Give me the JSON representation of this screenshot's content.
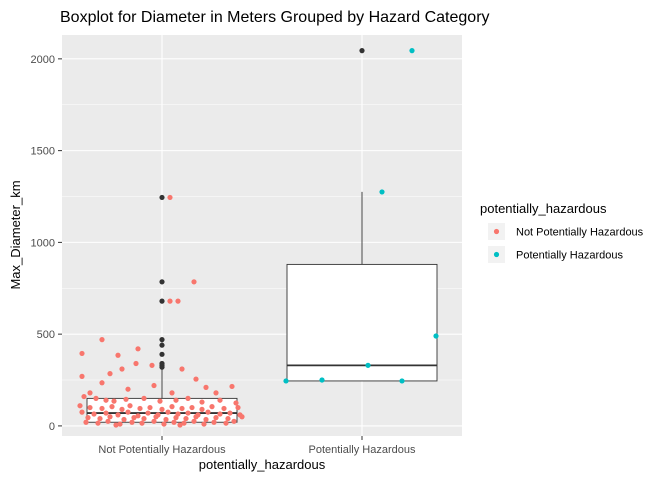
{
  "chart_data": {
    "type": "boxplot",
    "title": "Boxplot for Diameter in Meters Grouped by Hazard Category",
    "xlabel": "potentially_hazardous",
    "ylabel": "Max_Diameter_km",
    "ylim": [
      -55,
      2130
    ],
    "yticks": [
      0,
      500,
      1000,
      1500,
      2000
    ],
    "grid": true,
    "legend_position": "right",
    "legend": {
      "title": "potentially_hazardous",
      "entries": [
        {
          "name": "Not Potentially Hazardous",
          "color": "#F8766D"
        },
        {
          "name": "Potentially Hazardous",
          "color": "#00BFC4"
        }
      ]
    },
    "categories": [
      "Not Potentially Hazardous",
      "Potentially Hazardous"
    ],
    "boxes": [
      {
        "category": "Not Potentially Hazardous",
        "q1": 20,
        "median": 70,
        "q3": 150,
        "whisker_low": 5,
        "whisker_high": 330,
        "outliers": [
          1245,
          785,
          680,
          470,
          440,
          390,
          340,
          330,
          320
        ]
      },
      {
        "category": "Potentially Hazardous",
        "q1": 245,
        "median": 330,
        "q3": 880,
        "whisker_low": 245,
        "whisker_high": 1275,
        "outliers": [
          2045
        ]
      }
    ],
    "points": [
      {
        "category": "Potentially Hazardous",
        "jitter": -0.38,
        "value": 245
      },
      {
        "category": "Potentially Hazardous",
        "jitter": -0.2,
        "value": 250
      },
      {
        "category": "Potentially Hazardous",
        "jitter": 0.03,
        "value": 330
      },
      {
        "category": "Potentially Hazardous",
        "jitter": 0.1,
        "value": 1275
      },
      {
        "category": "Potentially Hazardous",
        "jitter": 0.2,
        "value": 245
      },
      {
        "category": "Potentially Hazardous",
        "jitter": 0.25,
        "value": 2045
      },
      {
        "category": "Potentially Hazardous",
        "jitter": 0.37,
        "value": 490
      },
      {
        "category": "Not Potentially Hazardous",
        "jitter": 0.04,
        "value": 1245
      },
      {
        "category": "Not Potentially Hazardous",
        "jitter": 0.16,
        "value": 785
      },
      {
        "category": "Not Potentially Hazardous",
        "jitter": 0.04,
        "value": 680
      },
      {
        "category": "Not Potentially Hazardous",
        "jitter": 0.08,
        "value": 680
      },
      {
        "category": "Not Potentially Hazardous",
        "jitter": -0.4,
        "value": 395
      },
      {
        "category": "Not Potentially Hazardous",
        "jitter": -0.3,
        "value": 470
      },
      {
        "category": "Not Potentially Hazardous",
        "jitter": -0.12,
        "value": 420
      },
      {
        "category": "Not Potentially Hazardous",
        "jitter": -0.22,
        "value": 385
      },
      {
        "category": "Not Potentially Hazardous",
        "jitter": -0.13,
        "value": 340
      },
      {
        "category": "Not Potentially Hazardous",
        "jitter": -0.05,
        "value": 330
      },
      {
        "category": "Not Potentially Hazardous",
        "jitter": -0.2,
        "value": 310
      },
      {
        "category": "Not Potentially Hazardous",
        "jitter": -0.26,
        "value": 285
      },
      {
        "category": "Not Potentially Hazardous",
        "jitter": -0.4,
        "value": 270
      },
      {
        "category": "Not Potentially Hazardous",
        "jitter": 0.1,
        "value": 310
      },
      {
        "category": "Not Potentially Hazardous",
        "jitter": 0.17,
        "value": 255
      },
      {
        "category": "Not Potentially Hazardous",
        "jitter": 0.22,
        "value": 210
      },
      {
        "category": "Not Potentially Hazardous",
        "jitter": 0.35,
        "value": 215
      },
      {
        "category": "Not Potentially Hazardous",
        "jitter": -0.3,
        "value": 235
      },
      {
        "category": "Not Potentially Hazardous",
        "jitter": -0.17,
        "value": 200
      },
      {
        "category": "Not Potentially Hazardous",
        "jitter": -0.04,
        "value": 220
      },
      {
        "category": "Not Potentially Hazardous",
        "jitter": 0.05,
        "value": 180
      },
      {
        "category": "Not Potentially Hazardous",
        "jitter": 0.27,
        "value": 180
      },
      {
        "category": "Not Potentially Hazardous",
        "jitter": -0.36,
        "value": 180
      },
      {
        "category": "Not Potentially Hazardous",
        "jitter": -0.39,
        "value": 160
      },
      {
        "category": "Not Potentially Hazardous",
        "jitter": -0.33,
        "value": 150
      },
      {
        "category": "Not Potentially Hazardous",
        "jitter": -0.28,
        "value": 140
      },
      {
        "category": "Not Potentially Hazardous",
        "jitter": -0.24,
        "value": 135
      },
      {
        "category": "Not Potentially Hazardous",
        "jitter": -0.18,
        "value": 145
      },
      {
        "category": "Not Potentially Hazardous",
        "jitter": -0.09,
        "value": 150
      },
      {
        "category": "Not Potentially Hazardous",
        "jitter": -0.01,
        "value": 135
      },
      {
        "category": "Not Potentially Hazardous",
        "jitter": 0.07,
        "value": 140
      },
      {
        "category": "Not Potentially Hazardous",
        "jitter": 0.13,
        "value": 150
      },
      {
        "category": "Not Potentially Hazardous",
        "jitter": 0.2,
        "value": 130
      },
      {
        "category": "Not Potentially Hazardous",
        "jitter": 0.29,
        "value": 140
      },
      {
        "category": "Not Potentially Hazardous",
        "jitter": 0.37,
        "value": 125
      },
      {
        "category": "Not Potentially Hazardous",
        "jitter": -0.41,
        "value": 110
      },
      {
        "category": "Not Potentially Hazardous",
        "jitter": -0.36,
        "value": 100
      },
      {
        "category": "Not Potentially Hazardous",
        "jitter": -0.3,
        "value": 95
      },
      {
        "category": "Not Potentially Hazardous",
        "jitter": -0.25,
        "value": 105
      },
      {
        "category": "Not Potentially Hazardous",
        "jitter": -0.2,
        "value": 90
      },
      {
        "category": "Not Potentially Hazardous",
        "jitter": -0.16,
        "value": 110
      },
      {
        "category": "Not Potentially Hazardous",
        "jitter": -0.11,
        "value": 95
      },
      {
        "category": "Not Potentially Hazardous",
        "jitter": -0.06,
        "value": 100
      },
      {
        "category": "Not Potentially Hazardous",
        "jitter": 0.0,
        "value": 90
      },
      {
        "category": "Not Potentially Hazardous",
        "jitter": 0.05,
        "value": 105
      },
      {
        "category": "Not Potentially Hazardous",
        "jitter": 0.1,
        "value": 95
      },
      {
        "category": "Not Potentially Hazardous",
        "jitter": 0.15,
        "value": 100
      },
      {
        "category": "Not Potentially Hazardous",
        "jitter": 0.2,
        "value": 90
      },
      {
        "category": "Not Potentially Hazardous",
        "jitter": 0.25,
        "value": 105
      },
      {
        "category": "Not Potentially Hazardous",
        "jitter": 0.31,
        "value": 95
      },
      {
        "category": "Not Potentially Hazardous",
        "jitter": 0.38,
        "value": 100
      },
      {
        "category": "Not Potentially Hazardous",
        "jitter": -0.4,
        "value": 75
      },
      {
        "category": "Not Potentially Hazardous",
        "jitter": -0.34,
        "value": 65
      },
      {
        "category": "Not Potentially Hazardous",
        "jitter": -0.28,
        "value": 70
      },
      {
        "category": "Not Potentially Hazardous",
        "jitter": -0.22,
        "value": 60
      },
      {
        "category": "Not Potentially Hazardous",
        "jitter": -0.17,
        "value": 75
      },
      {
        "category": "Not Potentially Hazardous",
        "jitter": -0.12,
        "value": 55
      },
      {
        "category": "Not Potentially Hazardous",
        "jitter": -0.07,
        "value": 70
      },
      {
        "category": "Not Potentially Hazardous",
        "jitter": -0.02,
        "value": 60
      },
      {
        "category": "Not Potentially Hazardous",
        "jitter": 0.03,
        "value": 75
      },
      {
        "category": "Not Potentially Hazardous",
        "jitter": 0.08,
        "value": 65
      },
      {
        "category": "Not Potentially Hazardous",
        "jitter": 0.13,
        "value": 70
      },
      {
        "category": "Not Potentially Hazardous",
        "jitter": 0.18,
        "value": 60
      },
      {
        "category": "Not Potentially Hazardous",
        "jitter": 0.23,
        "value": 75
      },
      {
        "category": "Not Potentially Hazardous",
        "jitter": 0.29,
        "value": 65
      },
      {
        "category": "Not Potentially Hazardous",
        "jitter": 0.34,
        "value": 70
      },
      {
        "category": "Not Potentially Hazardous",
        "jitter": 0.39,
        "value": 60
      },
      {
        "category": "Not Potentially Hazardous",
        "jitter": -0.37,
        "value": 45
      },
      {
        "category": "Not Potentially Hazardous",
        "jitter": -0.31,
        "value": 40
      },
      {
        "category": "Not Potentially Hazardous",
        "jitter": -0.26,
        "value": 50
      },
      {
        "category": "Not Potentially Hazardous",
        "jitter": -0.19,
        "value": 35
      },
      {
        "category": "Not Potentially Hazardous",
        "jitter": -0.14,
        "value": 45
      },
      {
        "category": "Not Potentially Hazardous",
        "jitter": -0.09,
        "value": 40
      },
      {
        "category": "Not Potentially Hazardous",
        "jitter": -0.03,
        "value": 50
      },
      {
        "category": "Not Potentially Hazardous",
        "jitter": 0.02,
        "value": 35
      },
      {
        "category": "Not Potentially Hazardous",
        "jitter": 0.07,
        "value": 45
      },
      {
        "category": "Not Potentially Hazardous",
        "jitter": 0.12,
        "value": 40
      },
      {
        "category": "Not Potentially Hazardous",
        "jitter": 0.17,
        "value": 50
      },
      {
        "category": "Not Potentially Hazardous",
        "jitter": 0.22,
        "value": 35
      },
      {
        "category": "Not Potentially Hazardous",
        "jitter": 0.27,
        "value": 45
      },
      {
        "category": "Not Potentially Hazardous",
        "jitter": 0.33,
        "value": 40
      },
      {
        "category": "Not Potentially Hazardous",
        "jitter": 0.4,
        "value": 50
      },
      {
        "category": "Not Potentially Hazardous",
        "jitter": -0.38,
        "value": 20
      },
      {
        "category": "Not Potentially Hazardous",
        "jitter": -0.32,
        "value": 15
      },
      {
        "category": "Not Potentially Hazardous",
        "jitter": -0.27,
        "value": 25
      },
      {
        "category": "Not Potentially Hazardous",
        "jitter": -0.21,
        "value": 10
      },
      {
        "category": "Not Potentially Hazardous",
        "jitter": -0.15,
        "value": 20
      },
      {
        "category": "Not Potentially Hazardous",
        "jitter": -0.1,
        "value": 15
      },
      {
        "category": "Not Potentially Hazardous",
        "jitter": -0.04,
        "value": 25
      },
      {
        "category": "Not Potentially Hazardous",
        "jitter": 0.01,
        "value": 10
      },
      {
        "category": "Not Potentially Hazardous",
        "jitter": 0.06,
        "value": 20
      },
      {
        "category": "Not Potentially Hazardous",
        "jitter": 0.11,
        "value": 15
      },
      {
        "category": "Not Potentially Hazardous",
        "jitter": 0.16,
        "value": 25
      },
      {
        "category": "Not Potentially Hazardous",
        "jitter": 0.21,
        "value": 10
      },
      {
        "category": "Not Potentially Hazardous",
        "jitter": 0.26,
        "value": 20
      },
      {
        "category": "Not Potentially Hazardous",
        "jitter": 0.32,
        "value": 15
      },
      {
        "category": "Not Potentially Hazardous",
        "jitter": 0.36,
        "value": 25
      },
      {
        "category": "Not Potentially Hazardous",
        "jitter": -0.23,
        "value": 5
      },
      {
        "category": "Not Potentially Hazardous",
        "jitter": 0.09,
        "value": 5
      }
    ]
  }
}
